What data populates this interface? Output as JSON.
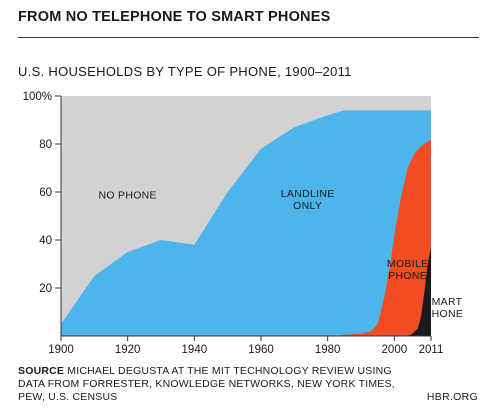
{
  "header": {
    "title": "FROM NO TELEPHONE TO SMART PHONES"
  },
  "footer": {
    "source_label": "SOURCE",
    "source_text": "MICHAEL DEGUSTA AT THE MIT TECHNOLOGY REVIEW USING DATA FROM FORRESTER, KNOWLEDGE NETWORKS, NEW YORK TIMES, PEW, U.S. CENSUS",
    "credit": "HBR.ORG"
  },
  "chart_data": {
    "type": "area",
    "stacked": true,
    "title": "U.S. HOUSEHOLDS BY TYPE OF PHONE, 1900–2011",
    "xlabel": "",
    "ylabel": "",
    "xlim": [
      1900,
      2011
    ],
    "ylim": [
      0,
      100
    ],
    "x_ticks": [
      {
        "value": 1900,
        "label": "1900"
      },
      {
        "value": 1920,
        "label": "1920"
      },
      {
        "value": 1940,
        "label": "1940"
      },
      {
        "value": 1960,
        "label": "1960"
      },
      {
        "value": 1980,
        "label": "1980"
      },
      {
        "value": 2000,
        "label": "2000"
      },
      {
        "value": 2011,
        "label": "2011"
      }
    ],
    "y_ticks": [
      {
        "value": 20,
        "label": "20"
      },
      {
        "value": 40,
        "label": "40"
      },
      {
        "value": 60,
        "label": "60"
      },
      {
        "value": 80,
        "label": "80"
      },
      {
        "value": 100,
        "label": "100%"
      }
    ],
    "grid": false,
    "background_color": "#d2d2d2",
    "series": [
      {
        "name": "SMART PHONE",
        "color": "#1a1a1a",
        "points": [
          [
            2003,
            0
          ],
          [
            2005,
            0.5
          ],
          [
            2007,
            3
          ],
          [
            2008,
            8
          ],
          [
            2009,
            18
          ],
          [
            2010,
            30
          ],
          [
            2011,
            37
          ]
        ]
      },
      {
        "name": "MOBILE PHONE",
        "color": "#f04d22",
        "points": [
          [
            1983,
            0
          ],
          [
            1985,
            0.5
          ],
          [
            1990,
            1
          ],
          [
            1993,
            2
          ],
          [
            1995,
            5
          ],
          [
            1997,
            16
          ],
          [
            1999,
            32
          ],
          [
            2000,
            42
          ],
          [
            2002,
            58
          ],
          [
            2004,
            70
          ],
          [
            2006,
            76
          ],
          [
            2008,
            79
          ],
          [
            2009,
            80
          ],
          [
            2010,
            81
          ],
          [
            2011,
            82
          ]
        ]
      },
      {
        "name": "LANDLINE ONLY",
        "color": "#4db5ea",
        "points": [
          [
            1900,
            5
          ],
          [
            1910,
            25
          ],
          [
            1920,
            35
          ],
          [
            1930,
            40
          ],
          [
            1940,
            38
          ],
          [
            1950,
            60
          ],
          [
            1960,
            78
          ],
          [
            1970,
            87
          ],
          [
            1980,
            92
          ],
          [
            1985,
            94
          ],
          [
            1990,
            94
          ],
          [
            2000,
            94
          ],
          [
            2011,
            94
          ]
        ]
      }
    ],
    "area_labels": [
      {
        "text": [
          "NO PHONE"
        ],
        "x": 1920,
        "y": 59,
        "anchor": "middle"
      },
      {
        "text": [
          "LANDLINE",
          "ONLY"
        ],
        "x": 1974,
        "y": 57,
        "anchor": "middle"
      },
      {
        "text": [
          "MOBILE",
          "PHONE"
        ],
        "x": 2004,
        "y": 28,
        "anchor": "middle"
      },
      {
        "text": [
          "SMART",
          "PHONE"
        ],
        "x": 2009,
        "y": 12,
        "anchor": "start"
      }
    ]
  }
}
